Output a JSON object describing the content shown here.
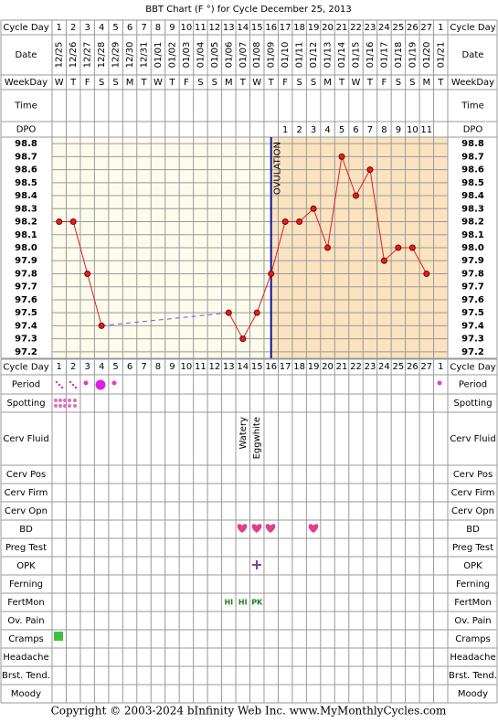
{
  "title": "BBT Chart (F °) for Cycle December 25, 2013",
  "row_labels": {
    "top": [
      "Cycle Day",
      "Date",
      "WeekDay",
      "Time",
      "DPO"
    ],
    "bottom": [
      "Cycle Day",
      "Period",
      "Spotting",
      "Cerv Fluid",
      "Cerv Pos",
      "Cerv Firm",
      "Cerv Opn",
      "BD",
      "Preg Test",
      "OPK",
      "Ferning",
      "FertMon",
      "Ov. Pain",
      "Cramps",
      "Headache",
      "Brst. Tend.",
      "Moody"
    ]
  },
  "chart_data": {
    "type": "line",
    "cycle_days": [
      1,
      2,
      3,
      4,
      5,
      6,
      7,
      8,
      9,
      10,
      11,
      12,
      13,
      14,
      15,
      16,
      17,
      18,
      19,
      20,
      21,
      22,
      23,
      24,
      25,
      26,
      27,
      1
    ],
    "dates": [
      "12/25",
      "12/26",
      "12/27",
      "12/28",
      "12/29",
      "12/30",
      "12/31",
      "01/01",
      "01/02",
      "01/03",
      "01/04",
      "01/05",
      "01/06",
      "01/07",
      "01/08",
      "01/09",
      "01/10",
      "01/11",
      "01/12",
      "01/13",
      "01/14",
      "01/15",
      "01/16",
      "01/17",
      "01/18",
      "01/19",
      "01/20",
      "01/21"
    ],
    "weekdays": [
      "W",
      "T",
      "F",
      "S",
      "S",
      "M",
      "T",
      "W",
      "T",
      "F",
      "S",
      "S",
      "M",
      "T",
      "W",
      "T",
      "F",
      "S",
      "S",
      "M",
      "T",
      "W",
      "T",
      "F",
      "S",
      "S",
      "M",
      "T"
    ],
    "dpo": [
      null,
      null,
      null,
      null,
      null,
      null,
      null,
      null,
      null,
      null,
      null,
      null,
      null,
      null,
      null,
      null,
      1,
      2,
      3,
      4,
      5,
      6,
      7,
      8,
      9,
      10,
      11,
      null
    ],
    "values": [
      98.2,
      98.2,
      97.8,
      97.4,
      null,
      null,
      null,
      null,
      null,
      null,
      null,
      null,
      97.5,
      97.3,
      97.5,
      97.8,
      98.2,
      98.2,
      98.3,
      98.0,
      98.7,
      98.4,
      98.6,
      97.9,
      98.0,
      98.0,
      97.8,
      null
    ],
    "color": "#e02020",
    "ylim": [
      97.15,
      98.85
    ],
    "yticks": [
      97.2,
      97.3,
      97.4,
      97.5,
      97.6,
      97.7,
      97.8,
      97.9,
      {
        "value": 98,
        "label": "98.0"
      },
      98.1,
      98.2,
      98.3,
      98.4,
      98.5,
      98.6,
      98.7,
      98.8
    ],
    "grid": true,
    "ovulation": {
      "label": "OVULATION",
      "day": 16
    }
  },
  "cerv_fluid": [
    {
      "day": 14,
      "text": "Watery"
    },
    {
      "day": 15,
      "text": "Eggwhite"
    }
  ],
  "fertmon": [
    {
      "day": 13,
      "text": "HI"
    },
    {
      "day": 14,
      "text": "HI"
    },
    {
      "day": 15,
      "text": "PK"
    }
  ],
  "footer": "Copyright © 2003-2024 bInfinity Web Inc.     www.MyMonthlyCycles.com"
}
